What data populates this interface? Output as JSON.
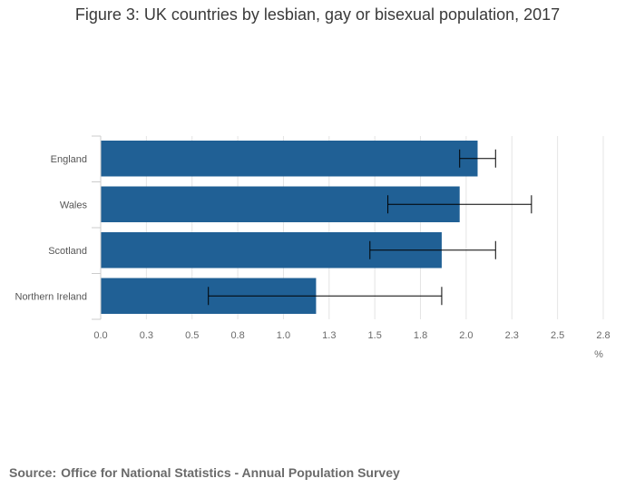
{
  "chart_data": {
    "type": "bar",
    "orientation": "horizontal",
    "title": "Figure 3: UK countries by lesbian, gay or bisexual population, 2017",
    "categories": [
      "England",
      "Wales",
      "Scotland",
      "Northern Ireland"
    ],
    "values": [
      2.1,
      2.0,
      1.9,
      1.2
    ],
    "error_bars": [
      {
        "low": 2.0,
        "high": 2.2
      },
      {
        "low": 1.6,
        "high": 2.4
      },
      {
        "low": 1.5,
        "high": 2.2
      },
      {
        "low": 0.6,
        "high": 1.9
      }
    ],
    "xlim": [
      0.0,
      2.8
    ],
    "xticks": [
      "0.0",
      "0.3",
      "0.5",
      "0.8",
      "1.0",
      "1.3",
      "1.5",
      "1.8",
      "2.0",
      "2.3",
      "2.5",
      "2.8"
    ],
    "xlabel": "%",
    "ylabel": "",
    "grid": true,
    "bar_color": "#206095"
  },
  "source": {
    "label": "Source:",
    "text": "Office for National Statistics - Annual Population Survey"
  }
}
